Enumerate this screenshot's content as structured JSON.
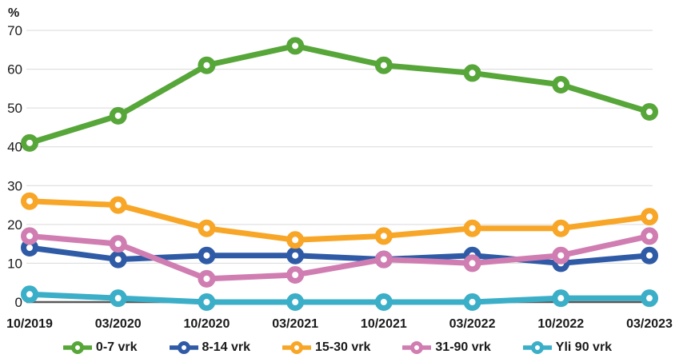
{
  "chart_data": {
    "type": "line",
    "title": "",
    "ylabel": "%",
    "xlabel": "",
    "ylim": [
      0,
      70
    ],
    "yticks": [
      0,
      10,
      20,
      30,
      40,
      50,
      60,
      70
    ],
    "grid": true,
    "legend_position": "bottom",
    "categories": [
      "10/2019",
      "03/2020",
      "10/2020",
      "03/2021",
      "10/2021",
      "03/2022",
      "10/2022",
      "03/2023"
    ],
    "series": [
      {
        "name": "0-7 vrk",
        "color": "#57A639",
        "values": [
          41,
          48,
          61,
          66,
          61,
          59,
          56,
          49
        ]
      },
      {
        "name": "8-14 vrk",
        "color": "#2F5BA6",
        "values": [
          14,
          11,
          12,
          12,
          11,
          12,
          10,
          12
        ]
      },
      {
        "name": "15-30 vrk",
        "color": "#F8A627",
        "values": [
          26,
          25,
          19,
          16,
          17,
          19,
          19,
          22
        ]
      },
      {
        "name": "31-90 vrk",
        "color": "#D07DB2",
        "values": [
          17,
          15,
          6,
          7,
          11,
          10,
          12,
          17
        ]
      },
      {
        "name": "Yli 90 vrk",
        "color": "#3BAEC8",
        "values": [
          2,
          1,
          0,
          0,
          0,
          0,
          1,
          1
        ]
      }
    ],
    "colors": {
      "grid": "#D9D9D9",
      "axis": "#595959",
      "text": "#1a1a1a"
    }
  }
}
